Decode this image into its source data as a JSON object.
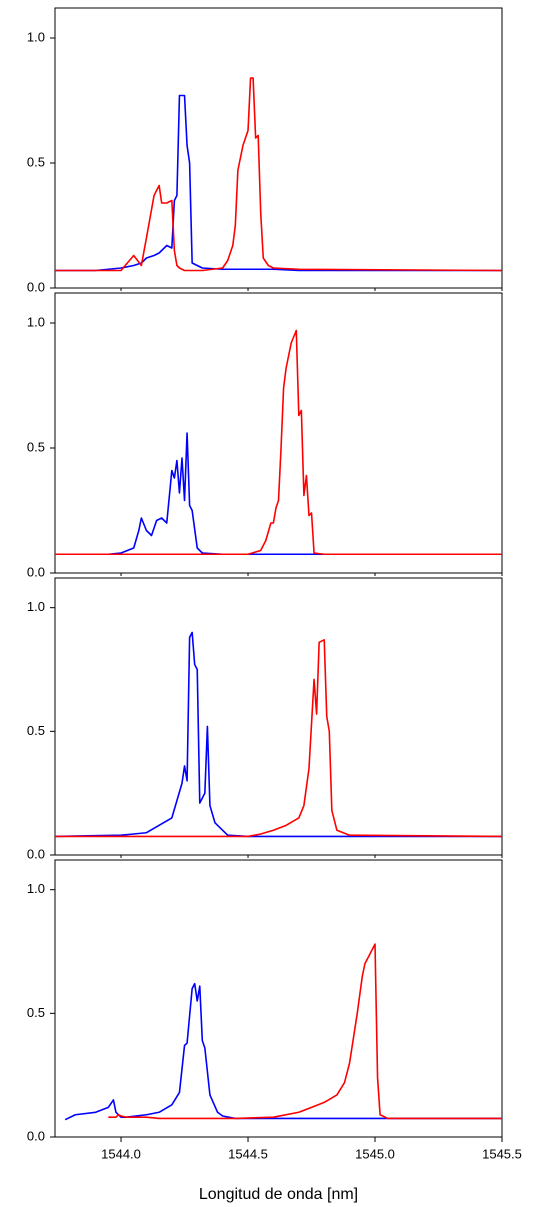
{
  "chart_data": [
    {
      "type": "line",
      "xlim": [
        1543.74,
        1545.5
      ],
      "ylim": [
        0,
        1.12
      ],
      "yticks": [
        {
          "value": 0,
          "label": "0.0"
        },
        0.5,
        {
          "value": 1,
          "label": "1.0"
        }
      ],
      "x": [
        1543.74,
        1543.9,
        1544.0,
        1544.05,
        1544.08,
        1544.1,
        1544.13,
        1544.15,
        1544.16,
        1544.18,
        1544.2,
        1544.21,
        1544.22,
        1544.23,
        1544.25,
        1544.26,
        1544.27,
        1544.28,
        1544.32,
        1544.4,
        1544.42,
        1544.44,
        1544.45,
        1544.46,
        1544.48,
        1544.5,
        1544.51,
        1544.52,
        1544.53,
        1544.54,
        1544.55,
        1544.56,
        1544.58,
        1544.6,
        1544.7,
        1545.5
      ],
      "series": [
        {
          "color": "#0000ff",
          "values": [
            0.07,
            0.07,
            0.08,
            0.09,
            0.1,
            0.12,
            0.13,
            0.14,
            0.15,
            0.17,
            0.16,
            0.35,
            0.37,
            0.77,
            0.77,
            0.57,
            0.5,
            0.1,
            0.08,
            0.075,
            0.075,
            0.075,
            0.075,
            0.075,
            0.075,
            0.075,
            0.075,
            0.075,
            0.075,
            0.075,
            0.075,
            0.075,
            0.075,
            0.075,
            0.07,
            0.07
          ]
        },
        {
          "color": "#ff0000",
          "values": [
            0.07,
            0.07,
            0.07,
            0.13,
            0.09,
            0.2,
            0.37,
            0.41,
            0.34,
            0.34,
            0.35,
            0.15,
            0.09,
            0.08,
            0.07,
            0.07,
            0.07,
            0.07,
            0.07,
            0.08,
            0.11,
            0.17,
            0.25,
            0.47,
            0.57,
            0.63,
            0.84,
            0.84,
            0.6,
            0.61,
            0.3,
            0.12,
            0.09,
            0.08,
            0.075,
            0.07
          ]
        }
      ]
    },
    {
      "type": "line",
      "xlim": [
        1543.74,
        1545.5
      ],
      "ylim": [
        0,
        1.12
      ],
      "yticks": [
        {
          "value": 0,
          "label": "0.0"
        },
        0.5,
        {
          "value": 1,
          "label": "1.0"
        }
      ],
      "x": [
        1543.74,
        1543.95,
        1544.0,
        1544.05,
        1544.07,
        1544.08,
        1544.1,
        1544.12,
        1544.14,
        1544.16,
        1544.18,
        1544.2,
        1544.21,
        1544.22,
        1544.23,
        1544.24,
        1544.25,
        1544.26,
        1544.27,
        1544.28,
        1544.3,
        1544.32,
        1544.4,
        1544.5,
        1544.55,
        1544.57,
        1544.59,
        1544.6,
        1544.61,
        1544.62,
        1544.63,
        1544.64,
        1544.65,
        1544.67,
        1544.69,
        1544.7,
        1544.71,
        1544.72,
        1544.73,
        1544.74,
        1544.75,
        1544.76,
        1544.8,
        1545.5
      ],
      "series": [
        {
          "color": "#0000ff",
          "values": [
            0.075,
            0.075,
            0.08,
            0.1,
            0.17,
            0.22,
            0.17,
            0.15,
            0.21,
            0.22,
            0.2,
            0.41,
            0.38,
            0.45,
            0.32,
            0.46,
            0.29,
            0.56,
            0.27,
            0.25,
            0.1,
            0.08,
            0.075,
            0.075,
            0.075,
            0.075,
            0.075,
            0.075,
            0.075,
            0.075,
            0.075,
            0.075,
            0.075,
            0.075,
            0.075,
            0.075,
            0.075,
            0.075,
            0.075,
            0.075,
            0.075,
            0.075,
            0.075,
            0.075
          ]
        },
        {
          "color": "#ff0000",
          "values": [
            0.075,
            0.075,
            0.075,
            0.075,
            0.075,
            0.075,
            0.075,
            0.075,
            0.075,
            0.075,
            0.075,
            0.075,
            0.075,
            0.075,
            0.075,
            0.075,
            0.075,
            0.075,
            0.075,
            0.075,
            0.075,
            0.075,
            0.075,
            0.075,
            0.09,
            0.13,
            0.2,
            0.2,
            0.26,
            0.29,
            0.5,
            0.74,
            0.82,
            0.92,
            0.97,
            0.63,
            0.65,
            0.31,
            0.39,
            0.23,
            0.24,
            0.08,
            0.075,
            0.075
          ]
        }
      ]
    },
    {
      "type": "line",
      "xlim": [
        1543.74,
        1545.5
      ],
      "ylim": [
        0,
        1.12
      ],
      "yticks": [
        {
          "value": 0,
          "label": "0.0"
        },
        0.5,
        {
          "value": 1,
          "label": "1.0"
        }
      ],
      "x": [
        1543.74,
        1544.0,
        1544.1,
        1544.15,
        1544.2,
        1544.22,
        1544.24,
        1544.25,
        1544.26,
        1544.27,
        1544.28,
        1544.29,
        1544.3,
        1544.31,
        1544.32,
        1544.33,
        1544.34,
        1544.35,
        1544.37,
        1544.4,
        1544.42,
        1544.5,
        1544.55,
        1544.6,
        1544.65,
        1544.7,
        1544.72,
        1544.74,
        1544.76,
        1544.77,
        1544.78,
        1544.8,
        1544.81,
        1544.82,
        1544.83,
        1544.85,
        1544.9,
        1545.5
      ],
      "series": [
        {
          "color": "#0000ff",
          "values": [
            0.075,
            0.08,
            0.09,
            0.12,
            0.15,
            0.22,
            0.29,
            0.36,
            0.3,
            0.88,
            0.9,
            0.77,
            0.75,
            0.21,
            0.23,
            0.25,
            0.52,
            0.2,
            0.13,
            0.1,
            0.08,
            0.075,
            0.075,
            0.075,
            0.075,
            0.075,
            0.075,
            0.075,
            0.075,
            0.075,
            0.075,
            0.075,
            0.075,
            0.075,
            0.075,
            0.075,
            0.075,
            0.075
          ]
        },
        {
          "color": "#ff0000",
          "values": [
            0.075,
            0.075,
            0.075,
            0.075,
            0.075,
            0.075,
            0.075,
            0.075,
            0.075,
            0.075,
            0.075,
            0.075,
            0.075,
            0.075,
            0.075,
            0.075,
            0.075,
            0.075,
            0.075,
            0.075,
            0.075,
            0.075,
            0.085,
            0.1,
            0.12,
            0.15,
            0.2,
            0.35,
            0.71,
            0.57,
            0.86,
            0.87,
            0.56,
            0.5,
            0.18,
            0.1,
            0.08,
            0.075
          ]
        }
      ]
    },
    {
      "type": "line",
      "xlim": [
        1543.74,
        1545.5
      ],
      "ylim": [
        0,
        1.12
      ],
      "yticks": [
        {
          "value": 0,
          "label": "0.0"
        },
        0.5,
        {
          "value": 1,
          "label": "1.0"
        }
      ],
      "xticks": [
        {
          "value": 1544,
          "label": "1544.0"
        },
        1544.5,
        {
          "value": 1545,
          "label": "1545.0"
        },
        1545.5
      ],
      "xlabel": "Longitud de onda [nm]",
      "x": [
        1543.74,
        1543.78,
        1543.82,
        1543.9,
        1543.95,
        1543.97,
        1543.98,
        1543.99,
        1544.0,
        1544.02,
        1544.1,
        1544.15,
        1544.2,
        1544.23,
        1544.25,
        1544.26,
        1544.28,
        1544.29,
        1544.3,
        1544.31,
        1544.32,
        1544.33,
        1544.35,
        1544.38,
        1544.4,
        1544.45,
        1544.6,
        1544.7,
        1544.75,
        1544.8,
        1544.85,
        1544.88,
        1544.9,
        1544.93,
        1544.95,
        1544.96,
        1544.98,
        1545.0,
        1545.01,
        1545.02,
        1545.05,
        1545.5
      ],
      "series": [
        {
          "color": "#0000ff",
          "values": [
            null,
            0.07,
            0.09,
            0.1,
            0.12,
            0.15,
            0.1,
            0.09,
            0.08,
            0.08,
            0.09,
            0.1,
            0.13,
            0.18,
            0.37,
            0.38,
            0.6,
            0.62,
            0.55,
            0.61,
            0.39,
            0.36,
            0.17,
            0.1,
            0.085,
            0.075,
            0.075,
            0.075,
            0.075,
            0.075,
            0.075,
            0.075,
            0.075,
            0.075,
            0.075,
            0.075,
            0.075,
            0.075,
            0.075,
            0.075,
            0.075,
            0.075
          ]
        },
        {
          "color": "#ff0000",
          "values": [
            null,
            null,
            null,
            null,
            0.08,
            0.08,
            0.08,
            0.09,
            0.085,
            0.08,
            0.08,
            0.075,
            0.075,
            0.075,
            0.075,
            0.075,
            0.075,
            0.075,
            0.075,
            0.075,
            0.075,
            0.075,
            0.075,
            0.075,
            0.075,
            0.075,
            0.08,
            0.1,
            0.12,
            0.14,
            0.17,
            0.22,
            0.3,
            0.5,
            0.65,
            0.7,
            0.74,
            0.78,
            0.24,
            0.09,
            0.075,
            0.075
          ]
        }
      ]
    }
  ]
}
